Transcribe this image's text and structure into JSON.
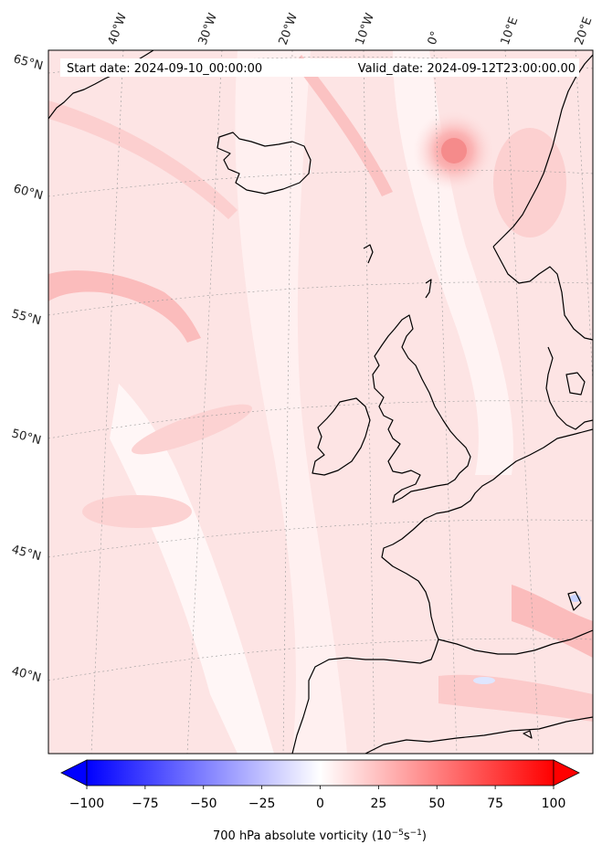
{
  "header": {
    "start_date": "Start date: 2024-09-10_00:00:00",
    "valid_date": "Valid_date: 2024-09-12T23:00:00.00"
  },
  "map": {
    "projection_grid": "lat-lon graticule",
    "lon_labels": [
      "40°W",
      "30°W",
      "20°W",
      "10°W",
      "0°",
      "10°E",
      "20°E"
    ],
    "lat_labels": [
      "65°N",
      "60°N",
      "55°N",
      "50°N",
      "45°N",
      "40°N"
    ],
    "field_colors": {
      "light": "#fde4e4",
      "mid": "#fcc9c9",
      "strong": "#f9a8a8",
      "white": "#ffffff",
      "coast": "#000000"
    }
  },
  "colorbar": {
    "ticks": [
      "−100",
      "−75",
      "−50",
      "−25",
      "0",
      "25",
      "50",
      "75",
      "100"
    ],
    "min": -100,
    "max": 100,
    "title": "700 hPa absolute vorticity (10",
    "title_exp1": "−5",
    "title_mid": "s",
    "title_exp2": "−1",
    "title_end": ")",
    "colors": {
      "negative": "#0000ff",
      "zero": "#ffffff",
      "positive": "#ff0000"
    }
  }
}
